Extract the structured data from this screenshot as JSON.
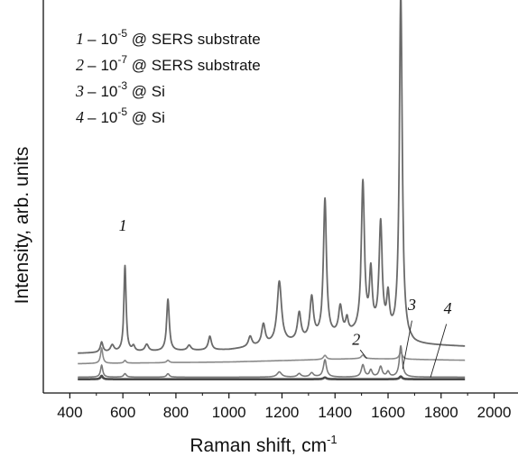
{
  "chart_data": {
    "type": "line",
    "xlabel": "Raman shift, cm",
    "xlabel_sup": "-1",
    "ylabel": "Intensity, arb. units",
    "xlim": [
      300,
      2090
    ],
    "ylim": [
      -0.04,
      1.1
    ],
    "xticks": [
      "400",
      "600",
      "800",
      "1000",
      "1200",
      "1400",
      "1600",
      "1800",
      "2000"
    ],
    "yticks_shown": false,
    "legend": [
      {
        "num": "1",
        "dash": "–",
        "base": "10",
        "exp": "-5",
        "suffix": " @ SERS substrate"
      },
      {
        "num": "2",
        "dash": "–",
        "base": "10",
        "exp": "-7",
        "suffix": " @ SERS substrate"
      },
      {
        "num": "3",
        "dash": "–",
        "base": "10",
        "exp": "-3",
        "suffix": " @ Si"
      },
      {
        "num": "4",
        "dash": "–",
        "base": "10",
        "exp": "-5",
        "suffix": " @ Si"
      }
    ],
    "series": [
      {
        "name": "1",
        "color": "#6a6a6a",
        "x_range": [
          430,
          1890
        ],
        "baseline": [
          [
            430,
            0.075
          ],
          [
            1000,
            0.085
          ],
          [
            1300,
            0.11
          ],
          [
            1550,
            0.14
          ],
          [
            1700,
            0.1
          ],
          [
            1890,
            0.095
          ]
        ],
        "peaks": [
          [
            520,
            0.03,
            6
          ],
          [
            560,
            0.02,
            8
          ],
          [
            608,
            0.25,
            5
          ],
          [
            640,
            0.015,
            6
          ],
          [
            690,
            0.02,
            8
          ],
          [
            770,
            0.15,
            6
          ],
          [
            850,
            0.015,
            8
          ],
          [
            928,
            0.04,
            7
          ],
          [
            1080,
            0.03,
            8
          ],
          [
            1130,
            0.06,
            8
          ],
          [
            1190,
            0.18,
            10
          ],
          [
            1265,
            0.08,
            8
          ],
          [
            1312,
            0.12,
            8
          ],
          [
            1362,
            0.4,
            7
          ],
          [
            1420,
            0.08,
            8
          ],
          [
            1445,
            0.04,
            6
          ],
          [
            1505,
            0.43,
            7
          ],
          [
            1535,
            0.16,
            6
          ],
          [
            1572,
            0.31,
            7
          ],
          [
            1600,
            0.1,
            6
          ],
          [
            1648,
            1.0,
            6.5
          ]
        ]
      },
      {
        "name": "2",
        "color": "#8a8a8a",
        "x_range": [
          430,
          1890
        ],
        "baseline": [
          [
            430,
            0.045
          ],
          [
            1000,
            0.05
          ],
          [
            1500,
            0.06
          ],
          [
            1890,
            0.055
          ]
        ],
        "peaks": [
          [
            520,
            0.045,
            5
          ],
          [
            608,
            0.008,
            5
          ],
          [
            770,
            0.007,
            6
          ],
          [
            1362,
            0.012,
            7
          ],
          [
            1505,
            0.01,
            7
          ],
          [
            1648,
            0.02,
            7
          ]
        ]
      },
      {
        "name": "3",
        "color": "#7a7a7a",
        "x_range": [
          430,
          1890
        ],
        "baseline": [
          [
            430,
            0.006
          ],
          [
            1890,
            0.006
          ]
        ],
        "peaks": [
          [
            520,
            0.035,
            5
          ],
          [
            608,
            0.01,
            6
          ],
          [
            770,
            0.01,
            6
          ],
          [
            1190,
            0.015,
            10
          ],
          [
            1265,
            0.01,
            8
          ],
          [
            1312,
            0.012,
            8
          ],
          [
            1362,
            0.05,
            7
          ],
          [
            1505,
            0.035,
            7
          ],
          [
            1535,
            0.02,
            6
          ],
          [
            1572,
            0.03,
            7
          ],
          [
            1600,
            0.015,
            6
          ],
          [
            1648,
            0.09,
            6.5
          ]
        ]
      },
      {
        "name": "4",
        "color": "#4a4a4a",
        "x_range": [
          430,
          1890
        ],
        "baseline": [
          [
            430,
            0.0
          ],
          [
            1890,
            0.0
          ]
        ],
        "peaks": [
          [
            520,
            0.01,
            5
          ],
          [
            1362,
            0.005,
            7
          ],
          [
            1648,
            0.008,
            6
          ]
        ]
      }
    ],
    "curve_labels": [
      "1",
      "2",
      "3",
      "4"
    ]
  }
}
